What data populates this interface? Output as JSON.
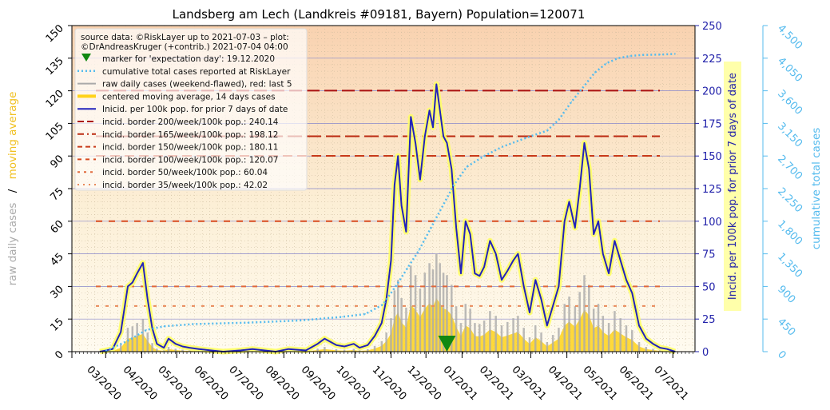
{
  "chart_data": {
    "type": "line",
    "title": "Landsberg am Lech (Landkreis #09181, Bayern) Population=120071",
    "xlabel": "",
    "x_tick_labels": [
      "03/2020",
      "04/2020",
      "05/2020",
      "06/2020",
      "07/2020",
      "08/2020",
      "09/2020",
      "10/2020",
      "11/2020",
      "12/2020",
      "01/2021",
      "02/2021",
      "03/2021",
      "04/2021",
      "05/2021",
      "06/2021",
      "07/2021"
    ],
    "xlim": [
      "2020-02-01",
      "2021-07-20"
    ],
    "y_left": {
      "label_raw": "raw daily cases",
      "label_sep": "/",
      "label_ma": "moving average",
      "ylim": [
        0,
        150
      ],
      "ticks": [
        "0",
        "15",
        "30",
        "45",
        "60",
        "75",
        "90",
        "105",
        "120",
        "135",
        "150"
      ]
    },
    "y_right": {
      "label": "Incid. per 100k pop. for prior 7 days of date",
      "ylim": [
        0,
        250
      ],
      "ticks": [
        "0",
        "25",
        "50",
        "75",
        "100",
        "125",
        "150",
        "175",
        "200",
        "225",
        "250"
      ]
    },
    "y_far_right": {
      "label": "cumulative total cases",
      "ylim": [
        0,
        4500
      ],
      "ticks": [
        "0",
        "450",
        "900",
        "1,350",
        "1,800",
        "2,250",
        "2,700",
        "3,150",
        "3,600",
        "4,050",
        "4,500"
      ]
    },
    "legend": {
      "placement": "top-left",
      "source_line1": "source data: ©RiskLayer up to 2021-07-03 – plot:",
      "source_line2": "©DrAndreasKruger (+contrib.) 2021-07-04 04:00",
      "entries": [
        "marker for 'expectation day': 19.12.2020",
        "cumulative total cases reported at RiskLayer",
        "raw daily cases (weekend-flawed), red: last 5",
        "centered moving average, 14 days cases",
        "Inicid. per 100k pop. for prior 7 days of date",
        "incid. border 200/week/100k pop.: 240.14",
        "incid. border 165/week/100k pop.: 198.12",
        "incid. border 150/week/100k pop.: 180.11",
        "incid. border 100/week/100k pop.: 120.07",
        "incid. border   50/week/100k pop.: 60.04",
        "incid. border   35/week/100k pop.: 42.02"
      ]
    },
    "expectation_day": "2020-12-19",
    "incidence_borders": [
      {
        "per100k": 200,
        "cases": 240.14,
        "color": "#aa1111"
      },
      {
        "per100k": 165,
        "cases": 198.12,
        "color": "#bb2a11"
      },
      {
        "per100k": 150,
        "cases": 180.11,
        "color": "#c83a1a"
      },
      {
        "per100k": 100,
        "cases": 120.07,
        "color": "#d64a20"
      },
      {
        "per100k": 50,
        "cases": 60.04,
        "color": "#e0683a"
      },
      {
        "per100k": 35,
        "cases": 42.02,
        "color": "#e88a5a"
      }
    ],
    "series": [
      {
        "name": "Inicid. per 100k pop. for prior 7 days of date",
        "axis": "right",
        "color": "#2222bb",
        "x": [
          "2020-02-25",
          "2020-03-07",
          "2020-03-14",
          "2020-03-20",
          "2020-03-24",
          "2020-03-28",
          "2020-04-02",
          "2020-04-06",
          "2020-04-10",
          "2020-04-14",
          "2020-04-20",
          "2020-04-24",
          "2020-04-30",
          "2020-05-06",
          "2020-05-12",
          "2020-05-20",
          "2020-05-30",
          "2020-06-10",
          "2020-06-25",
          "2020-07-05",
          "2020-07-15",
          "2020-07-25",
          "2020-08-05",
          "2020-08-20",
          "2020-08-30",
          "2020-09-05",
          "2020-09-15",
          "2020-09-22",
          "2020-09-30",
          "2020-10-05",
          "2020-10-12",
          "2020-10-18",
          "2020-10-24",
          "2020-10-28",
          "2020-11-01",
          "2020-11-04",
          "2020-11-07",
          "2020-11-10",
          "2020-11-14",
          "2020-11-18",
          "2020-11-22",
          "2020-11-26",
          "2020-11-30",
          "2020-12-04",
          "2020-12-07",
          "2020-12-10",
          "2020-12-13",
          "2020-12-16",
          "2020-12-19",
          "2020-12-23",
          "2020-12-27",
          "2020-12-31",
          "2021-01-04",
          "2021-01-08",
          "2021-01-12",
          "2021-01-16",
          "2021-01-20",
          "2021-01-25",
          "2021-01-30",
          "2021-02-04",
          "2021-02-09",
          "2021-02-14",
          "2021-02-18",
          "2021-02-23",
          "2021-02-28",
          "2021-03-05",
          "2021-03-10",
          "2021-03-15",
          "2021-03-20",
          "2021-03-25",
          "2021-03-30",
          "2021-04-03",
          "2021-04-08",
          "2021-04-12",
          "2021-04-16",
          "2021-04-20",
          "2021-04-24",
          "2021-04-28",
          "2021-05-02",
          "2021-05-07",
          "2021-05-12",
          "2021-05-17",
          "2021-05-22",
          "2021-05-27",
          "2021-06-02",
          "2021-06-08",
          "2021-06-14",
          "2021-06-20",
          "2021-06-26",
          "2021-07-03"
        ],
        "values": [
          0,
          2,
          15,
          50,
          53,
          60,
          68,
          40,
          18,
          6,
          3,
          10,
          6,
          4,
          3,
          2,
          1,
          0,
          1,
          2,
          1,
          0,
          2,
          1,
          6,
          10,
          5,
          4,
          6,
          3,
          5,
          12,
          22,
          40,
          70,
          128,
          150,
          112,
          92,
          180,
          160,
          132,
          165,
          185,
          172,
          205,
          185,
          165,
          160,
          140,
          95,
          60,
          100,
          90,
          60,
          58,
          65,
          85,
          75,
          55,
          62,
          70,
          75,
          50,
          30,
          55,
          40,
          20,
          35,
          50,
          100,
          115,
          95,
          125,
          160,
          140,
          90,
          100,
          75,
          60,
          85,
          70,
          55,
          45,
          20,
          10,
          6,
          3,
          2,
          0
        ]
      },
      {
        "name": "cumulative total cases reported at RiskLayer",
        "axis": "far_right",
        "color": "#55bbee",
        "x": [
          "2020-03-01",
          "2020-03-20",
          "2020-04-05",
          "2020-04-20",
          "2020-05-15",
          "2020-07-01",
          "2020-08-15",
          "2020-09-20",
          "2020-10-10",
          "2020-10-25",
          "2020-11-05",
          "2020-11-15",
          "2020-11-25",
          "2020-12-05",
          "2020-12-15",
          "2020-12-25",
          "2021-01-05",
          "2021-01-20",
          "2021-02-05",
          "2021-02-25",
          "2021-03-15",
          "2021-03-25",
          "2021-04-05",
          "2021-04-15",
          "2021-04-25",
          "2021-05-05",
          "2021-05-15",
          "2021-05-25",
          "2021-06-05",
          "2021-06-20",
          "2021-07-03"
        ],
        "values": [
          10,
          150,
          300,
          350,
          380,
          400,
          430,
          480,
          520,
          650,
          900,
          1150,
          1400,
          1700,
          2000,
          2300,
          2550,
          2700,
          2830,
          2950,
          3050,
          3200,
          3450,
          3650,
          3850,
          3980,
          4050,
          4080,
          4095,
          4100,
          4110
        ]
      }
    ]
  }
}
